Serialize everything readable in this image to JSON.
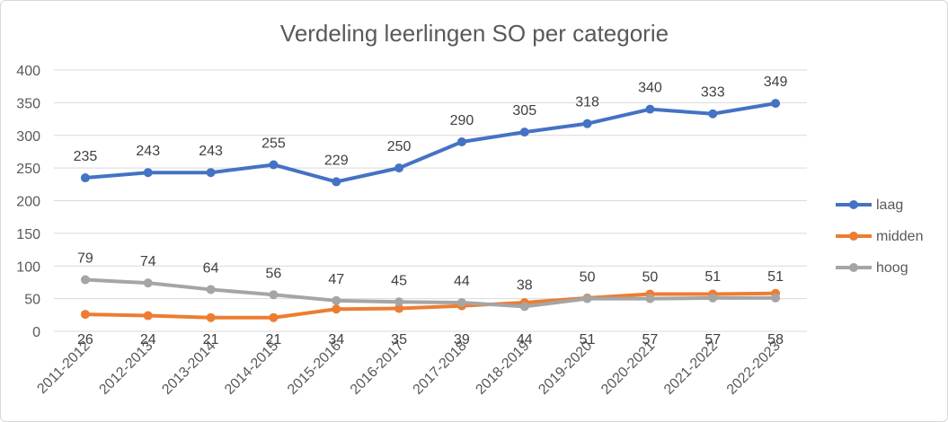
{
  "chart_data": {
    "type": "line",
    "title": "Verdeling leerlingen SO per categorie",
    "xlabel": "",
    "ylabel": "",
    "categories": [
      "2011-2012",
      "2012-2013",
      "2013-2014",
      "2014-2015",
      "2015-2016",
      "2016-2017",
      "2017-2018",
      "2018-2019",
      "2019-2020",
      "2020-2021",
      "2021-2022",
      "2022-2023"
    ],
    "ylim": [
      0,
      400
    ],
    "yticks": [
      "0",
      "50",
      "100",
      "150",
      "200",
      "250",
      "300",
      "350",
      "400"
    ],
    "grid": true,
    "legend_position": "right",
    "series": [
      {
        "name": "laag",
        "color": "#4472C4",
        "values": [
          235,
          243,
          243,
          255,
          229,
          250,
          290,
          305,
          318,
          340,
          333,
          349
        ]
      },
      {
        "name": "midden",
        "color": "#ED7D31",
        "values": [
          26,
          24,
          21,
          21,
          34,
          35,
          39,
          44,
          51,
          57,
          57,
          58
        ]
      },
      {
        "name": "hoog",
        "color": "#A5A5A5",
        "values": [
          79,
          74,
          64,
          56,
          47,
          45,
          44,
          38,
          50,
          50,
          51,
          51
        ]
      }
    ]
  }
}
